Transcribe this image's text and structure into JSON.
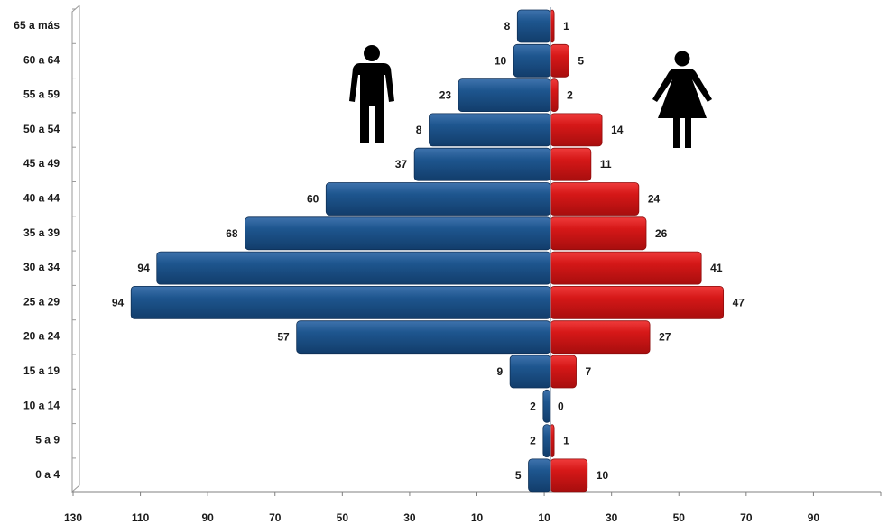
{
  "chart_data": {
    "type": "bar",
    "orientation": "horizontal",
    "subtype": "population-pyramid",
    "categories": [
      "65 a más",
      "60 a 64",
      "55 a 59",
      "50 a 54",
      "45 a 49",
      "40 a 44",
      "35 a 39",
      "30 a 34",
      "25 a 29",
      "20 a 24",
      "15 a 19",
      "10 a 14",
      "5 a 9",
      "0 a 4"
    ],
    "series": [
      {
        "key": "men",
        "color": "#1a4f86",
        "values": [
          8,
          10,
          23,
          8,
          37,
          60,
          68,
          94,
          94,
          57,
          9,
          2,
          2,
          5
        ],
        "bar_extent": [
          9,
          10,
          25,
          33,
          37,
          61,
          83,
          107,
          114,
          69,
          11,
          2,
          2,
          6
        ],
        "icon": "male-figure-icon"
      },
      {
        "key": "women",
        "color": "#d01818",
        "values": [
          1,
          5,
          2,
          14,
          11,
          24,
          26,
          41,
          47,
          27,
          7,
          0,
          1,
          10
        ],
        "bar_extent": [
          1,
          5,
          2,
          14,
          11,
          24,
          26,
          41,
          47,
          27,
          7,
          0,
          1,
          10
        ],
        "icon": "female-figure-icon"
      }
    ],
    "x_ticks": [
      "130",
      "110",
      "90",
      "70",
      "50",
      "30",
      "10",
      "10",
      "30",
      "50",
      "70",
      "90"
    ],
    "xlim": [
      -130,
      90
    ],
    "xlabel": "",
    "ylabel": "",
    "title": "",
    "grid": false,
    "legend": "none"
  }
}
